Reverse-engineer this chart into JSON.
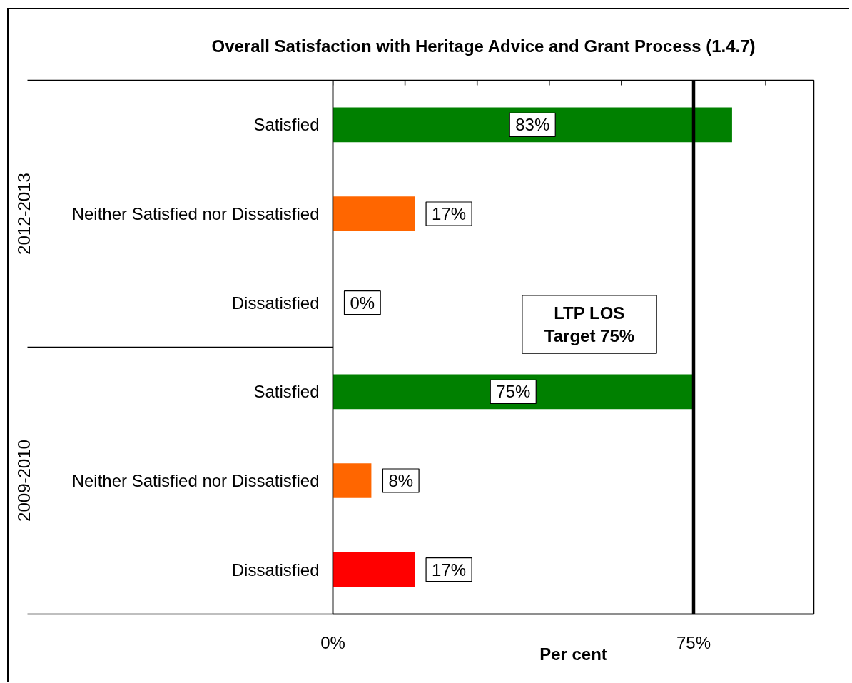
{
  "chart_data": {
    "type": "bar",
    "orientation": "horizontal",
    "title": "Overall Satisfaction with Heritage Advice and Grant Process (1.4.7)",
    "xlabel": "Per cent",
    "categories": [
      "Satisfied",
      "Neither Satisfied nor Dissatisfied",
      "Dissatisfied",
      "Satisfied",
      "Neither Satisfied nor Dissatisfied",
      "Dissatisfied"
    ],
    "values": [
      83,
      17,
      0,
      75,
      8,
      17
    ],
    "colors": [
      "#008000",
      "#ff6600",
      "#ff0000",
      "#008000",
      "#ff6600",
      "#ff0000"
    ],
    "value_labels": [
      "83%",
      "17%",
      "0%",
      "75%",
      "8%",
      "17%"
    ],
    "xlim": [
      0,
      100
    ],
    "xticks": [
      {
        "value": 0,
        "label": "0%"
      },
      {
        "value": 15,
        "label": null
      },
      {
        "value": 30,
        "label": null
      },
      {
        "value": 45,
        "label": null
      },
      {
        "value": 60,
        "label": null
      },
      {
        "value": 75,
        "label": "75%"
      },
      {
        "value": 90,
        "label": null
      }
    ],
    "ref_lines": [
      {
        "axis": "x",
        "value": 75,
        "label": "LTP LOS\nTarget 75%",
        "color": "#000000"
      }
    ],
    "annotations": [
      "2012-2013",
      "2009-2010"
    ],
    "grid": false
  }
}
